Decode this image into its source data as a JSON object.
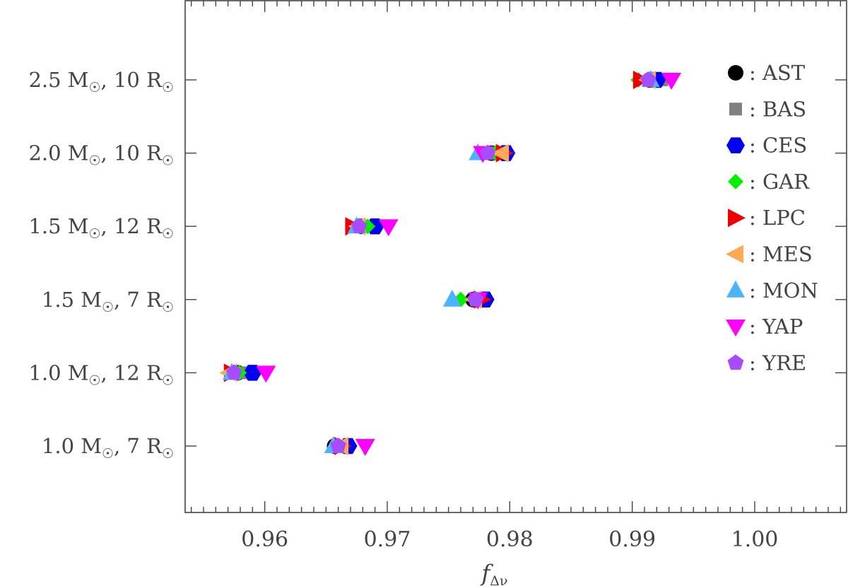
{
  "chart_data": {
    "type": "scatter",
    "xlabel": "f",
    "xlabel_sub": "Δν",
    "xlim": [
      0.9535,
      1.0075
    ],
    "x_ticks": [
      {
        "value": 0.96,
        "label": "0.96"
      },
      {
        "value": 0.97,
        "label": "0.97"
      },
      {
        "value": 0.98,
        "label": "0.98"
      },
      {
        "value": 0.99,
        "label": "0.99"
      },
      {
        "value": 1.0,
        "label": "1.00"
      }
    ],
    "categories": [
      {
        "mass": "2.5 M",
        "radius": "10 R"
      },
      {
        "mass": "2.0 M",
        "radius": "10 R"
      },
      {
        "mass": "1.5 M",
        "radius": "12 R"
      },
      {
        "mass": "1.5 M",
        "radius": "7 R"
      },
      {
        "mass": "1.0 M",
        "radius": "12 R"
      },
      {
        "mass": "1.0 M",
        "radius": "7 R"
      }
    ],
    "legend_position": "top-right",
    "series": [
      {
        "name": "AST",
        "marker": "circle",
        "color": "#000000",
        "values": [
          0.9914,
          0.9785,
          0.9679,
          0.977,
          0.9578,
          0.9657
        ]
      },
      {
        "name": "BAS",
        "marker": "square",
        "color": "#808080",
        "values": [
          0.9924,
          0.9786,
          0.968,
          0.9773,
          0.9582,
          0.966
        ]
      },
      {
        "name": "CES",
        "marker": "hexagon",
        "color": "#0000ee",
        "values": [
          0.992,
          0.9797,
          0.969,
          0.978,
          0.959,
          0.9668
        ]
      },
      {
        "name": "GAR",
        "marker": "diamond",
        "color": "#00ee00",
        "values": [
          0.9905,
          0.9788,
          0.9684,
          0.976,
          0.9579,
          0.9658
        ]
      },
      {
        "name": "LPC",
        "marker": "triangle-right",
        "color": "#ee0000",
        "values": [
          0.9907,
          0.9795,
          0.9672,
          0.9777,
          0.9573,
          0.9663
        ]
      },
      {
        "name": "MES",
        "marker": "triangle-left",
        "color": "#ffaa55",
        "values": [
          0.9913,
          0.9793,
          0.9676,
          0.9771,
          0.9571,
          0.9662
        ]
      },
      {
        "name": "MON",
        "marker": "triangle-up",
        "color": "#4db3ff",
        "values": [
          0.9915,
          0.9774,
          0.9675,
          0.9753,
          0.9573,
          0.9656
        ]
      },
      {
        "name": "YAP",
        "marker": "triangle-down",
        "color": "#ff00ff",
        "values": [
          0.9932,
          0.9778,
          0.9701,
          0.9774,
          0.9601,
          0.9682
        ]
      },
      {
        "name": "YRE",
        "marker": "pentagon",
        "color": "#a64dff",
        "values": [
          0.9913,
          0.9782,
          0.9677,
          0.9772,
          0.9575,
          0.966
        ]
      }
    ]
  }
}
